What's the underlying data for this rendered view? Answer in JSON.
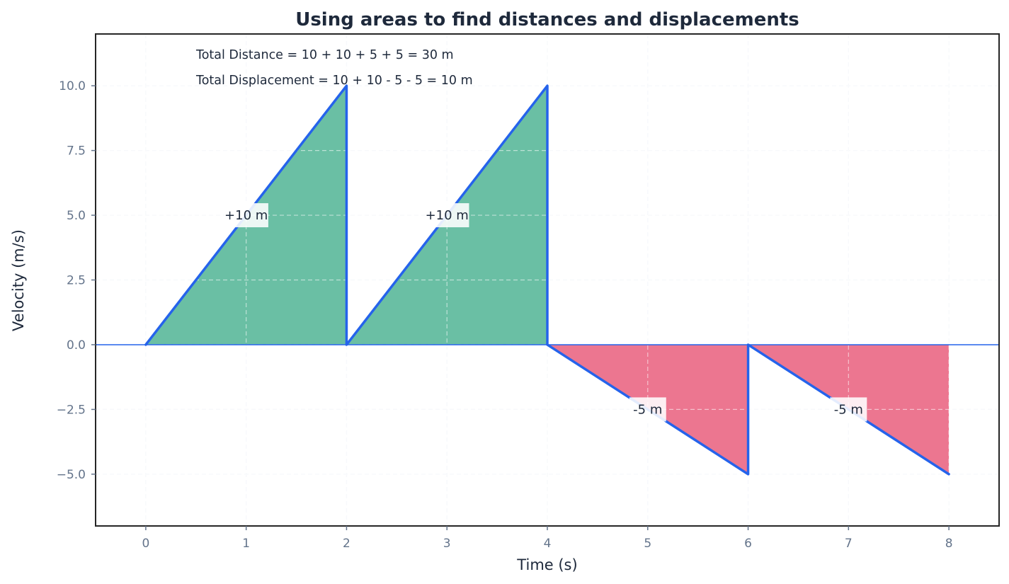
{
  "chart_data": {
    "type": "line",
    "title": "Using areas to find distances and displacements",
    "xlabel": "Time (s)",
    "ylabel": "Velocity (m/s)",
    "xlim": [
      -0.5,
      8.5
    ],
    "ylim": [
      -7,
      12
    ],
    "grid": true,
    "xticks": [
      0,
      1,
      2,
      3,
      4,
      5,
      6,
      7,
      8
    ],
    "xtick_labels": [
      "0",
      "1",
      "2",
      "3",
      "4",
      "5",
      "6",
      "7",
      "8"
    ],
    "yticks": [
      -5.0,
      -2.5,
      0.0,
      2.5,
      5.0,
      7.5,
      10.0
    ],
    "ytick_labels": [
      "−5.0",
      "−2.5",
      "0.0",
      "2.5",
      "5.0",
      "7.5",
      "10.0"
    ],
    "series": [
      {
        "name": "velocity",
        "color": "#2563eb",
        "x": [
          0,
          2,
          2,
          4,
          4,
          6,
          6,
          8
        ],
        "y": [
          0,
          10,
          0,
          10,
          0,
          -5,
          0,
          -5
        ]
      }
    ],
    "areas": [
      {
        "x": [
          0,
          2
        ],
        "y_end": 10,
        "value": 10,
        "label": "+10 m",
        "label_pos": [
          1,
          5
        ],
        "color": "#6abfa4"
      },
      {
        "x": [
          2,
          4
        ],
        "y_end": 10,
        "value": 10,
        "label": "+10 m",
        "label_pos": [
          3,
          5
        ],
        "color": "#6abfa4"
      },
      {
        "x": [
          4,
          6
        ],
        "y_end": -5,
        "value": -5,
        "label": "-5 m",
        "label_pos": [
          5,
          -2.5
        ],
        "color": "#ec7690"
      },
      {
        "x": [
          6,
          8
        ],
        "y_end": -5,
        "value": -5,
        "label": "-5 m",
        "label_pos": [
          7,
          -2.5
        ],
        "color": "#ec7690"
      }
    ],
    "annotations": [
      "Total Distance = 10 + 10 + 5 + 5 = 30 m",
      "Total Displacement = 10 + 10 - 5 - 5 = 10 m"
    ],
    "reference_line": {
      "y": 0,
      "color": "#2563eb"
    }
  },
  "colors": {
    "positive_fill": "#6abfa4",
    "negative_fill": "#ec7690",
    "line": "#2563eb",
    "text": "#1e293b",
    "tick": "#64748b"
  }
}
